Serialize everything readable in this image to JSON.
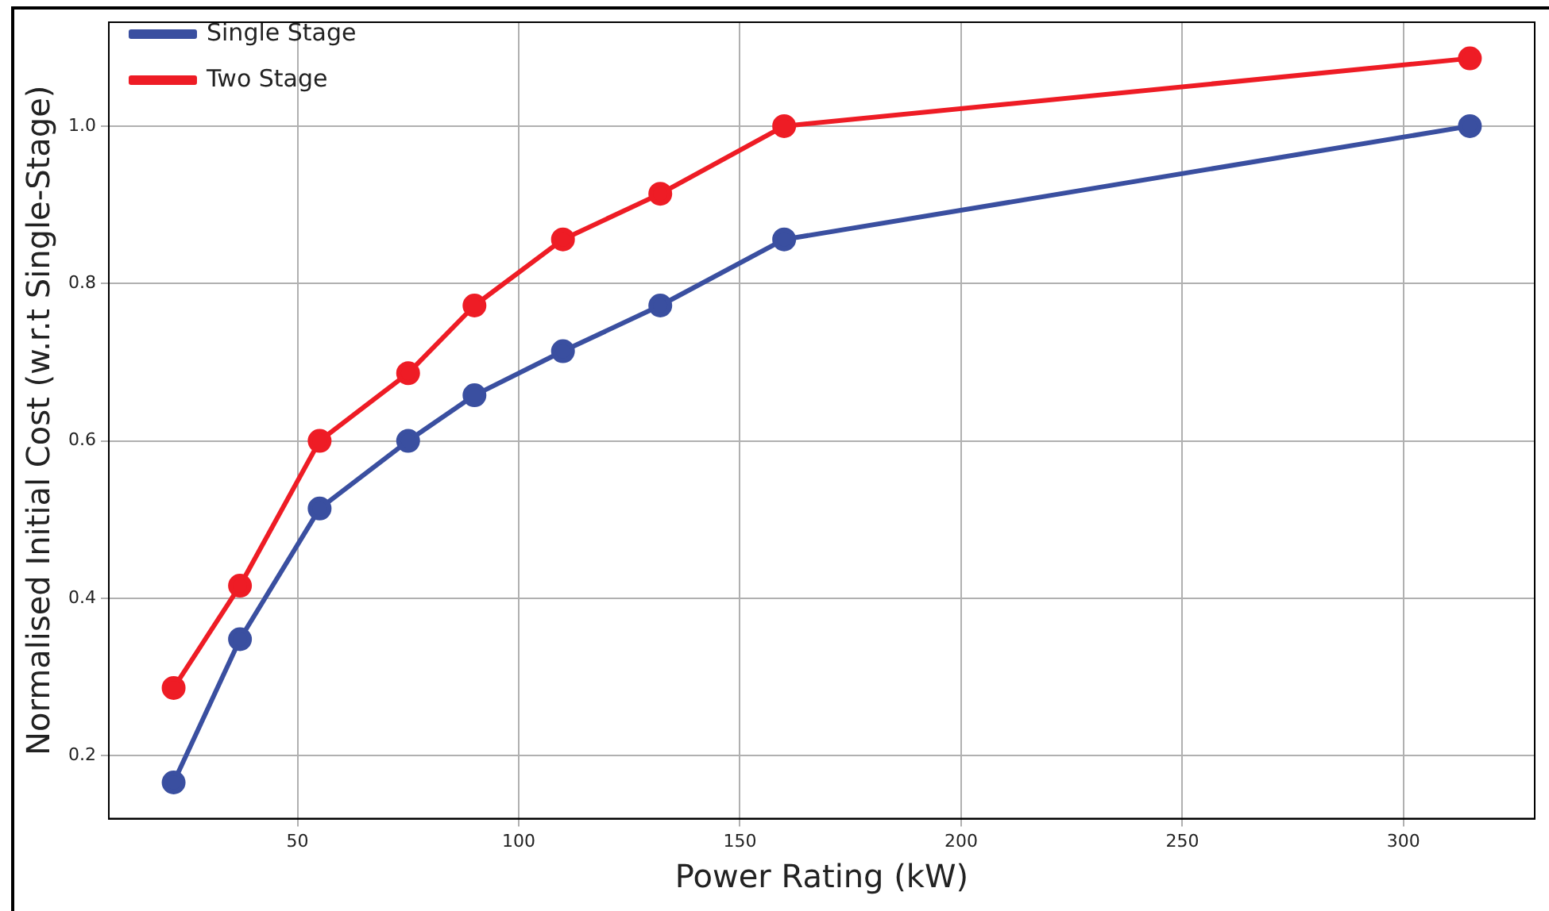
{
  "chart_data": {
    "type": "line",
    "xlabel": "Power Rating (kW)",
    "ylabel": "Normalised Initial Cost (w.r.t Single-Stage)",
    "x": [
      22,
      37,
      55,
      75,
      90,
      110,
      132,
      160,
      315
    ],
    "series": [
      {
        "name": "Single Stage",
        "color": "#3a4fa0",
        "values": [
          0.166,
          0.348,
          0.514,
          0.6,
          0.658,
          0.714,
          0.772,
          0.856,
          1.0
        ]
      },
      {
        "name": "Two Stage",
        "color": "#ee1c25",
        "values": [
          0.286,
          0.416,
          0.6,
          0.686,
          0.772,
          0.856,
          0.914,
          1.0,
          1.086
        ]
      }
    ],
    "xlim": [
      7.35,
      329.65
    ],
    "ylim": [
      0.12,
      1.132
    ],
    "xticks": [
      50,
      100,
      150,
      200,
      250,
      300
    ],
    "yticks": [
      0.2,
      0.4,
      0.6,
      0.8,
      {
        "value": 1,
        "label": "1.0"
      }
    ],
    "grid": true,
    "legend": "top left",
    "marker": "circle",
    "line_style": "solid"
  }
}
